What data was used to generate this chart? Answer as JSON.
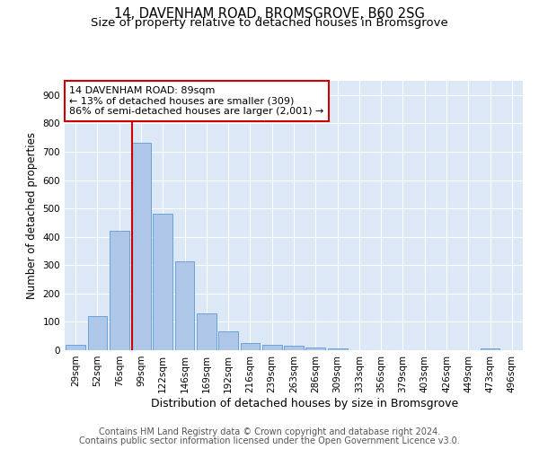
{
  "title1": "14, DAVENHAM ROAD, BROMSGROVE, B60 2SG",
  "title2": "Size of property relative to detached houses in Bromsgrove",
  "xlabel": "Distribution of detached houses by size in Bromsgrove",
  "ylabel": "Number of detached properties",
  "categories": [
    "29sqm",
    "52sqm",
    "76sqm",
    "99sqm",
    "122sqm",
    "146sqm",
    "169sqm",
    "192sqm",
    "216sqm",
    "239sqm",
    "263sqm",
    "286sqm",
    "309sqm",
    "333sqm",
    "356sqm",
    "379sqm",
    "403sqm",
    "426sqm",
    "449sqm",
    "473sqm",
    "496sqm"
  ],
  "values": [
    18,
    120,
    420,
    730,
    480,
    315,
    130,
    65,
    25,
    20,
    15,
    10,
    5,
    0,
    0,
    0,
    0,
    0,
    0,
    5,
    0
  ],
  "bar_color": "#aec6e8",
  "bar_edge_color": "#5b9bd5",
  "vline_color": "#cc0000",
  "annotation_line1": "14 DAVENHAM ROAD: 89sqm",
  "annotation_line2": "← 13% of detached houses are smaller (309)",
  "annotation_line3": "86% of semi-detached houses are larger (2,001) →",
  "annotation_box_color": "#ffffff",
  "annotation_box_edge": "#cc0000",
  "ylim": [
    0,
    950
  ],
  "yticks": [
    0,
    100,
    200,
    300,
    400,
    500,
    600,
    700,
    800,
    900
  ],
  "footer1": "Contains HM Land Registry data © Crown copyright and database right 2024.",
  "footer2": "Contains public sector information licensed under the Open Government Licence v3.0.",
  "bg_color": "#ffffff",
  "plot_bg_color": "#dce8f5",
  "grid_color": "#ffffff",
  "title1_fontsize": 10.5,
  "title2_fontsize": 9.5,
  "xlabel_fontsize": 9,
  "ylabel_fontsize": 8.5,
  "tick_fontsize": 7.5,
  "annotation_fontsize": 8,
  "footer_fontsize": 7
}
